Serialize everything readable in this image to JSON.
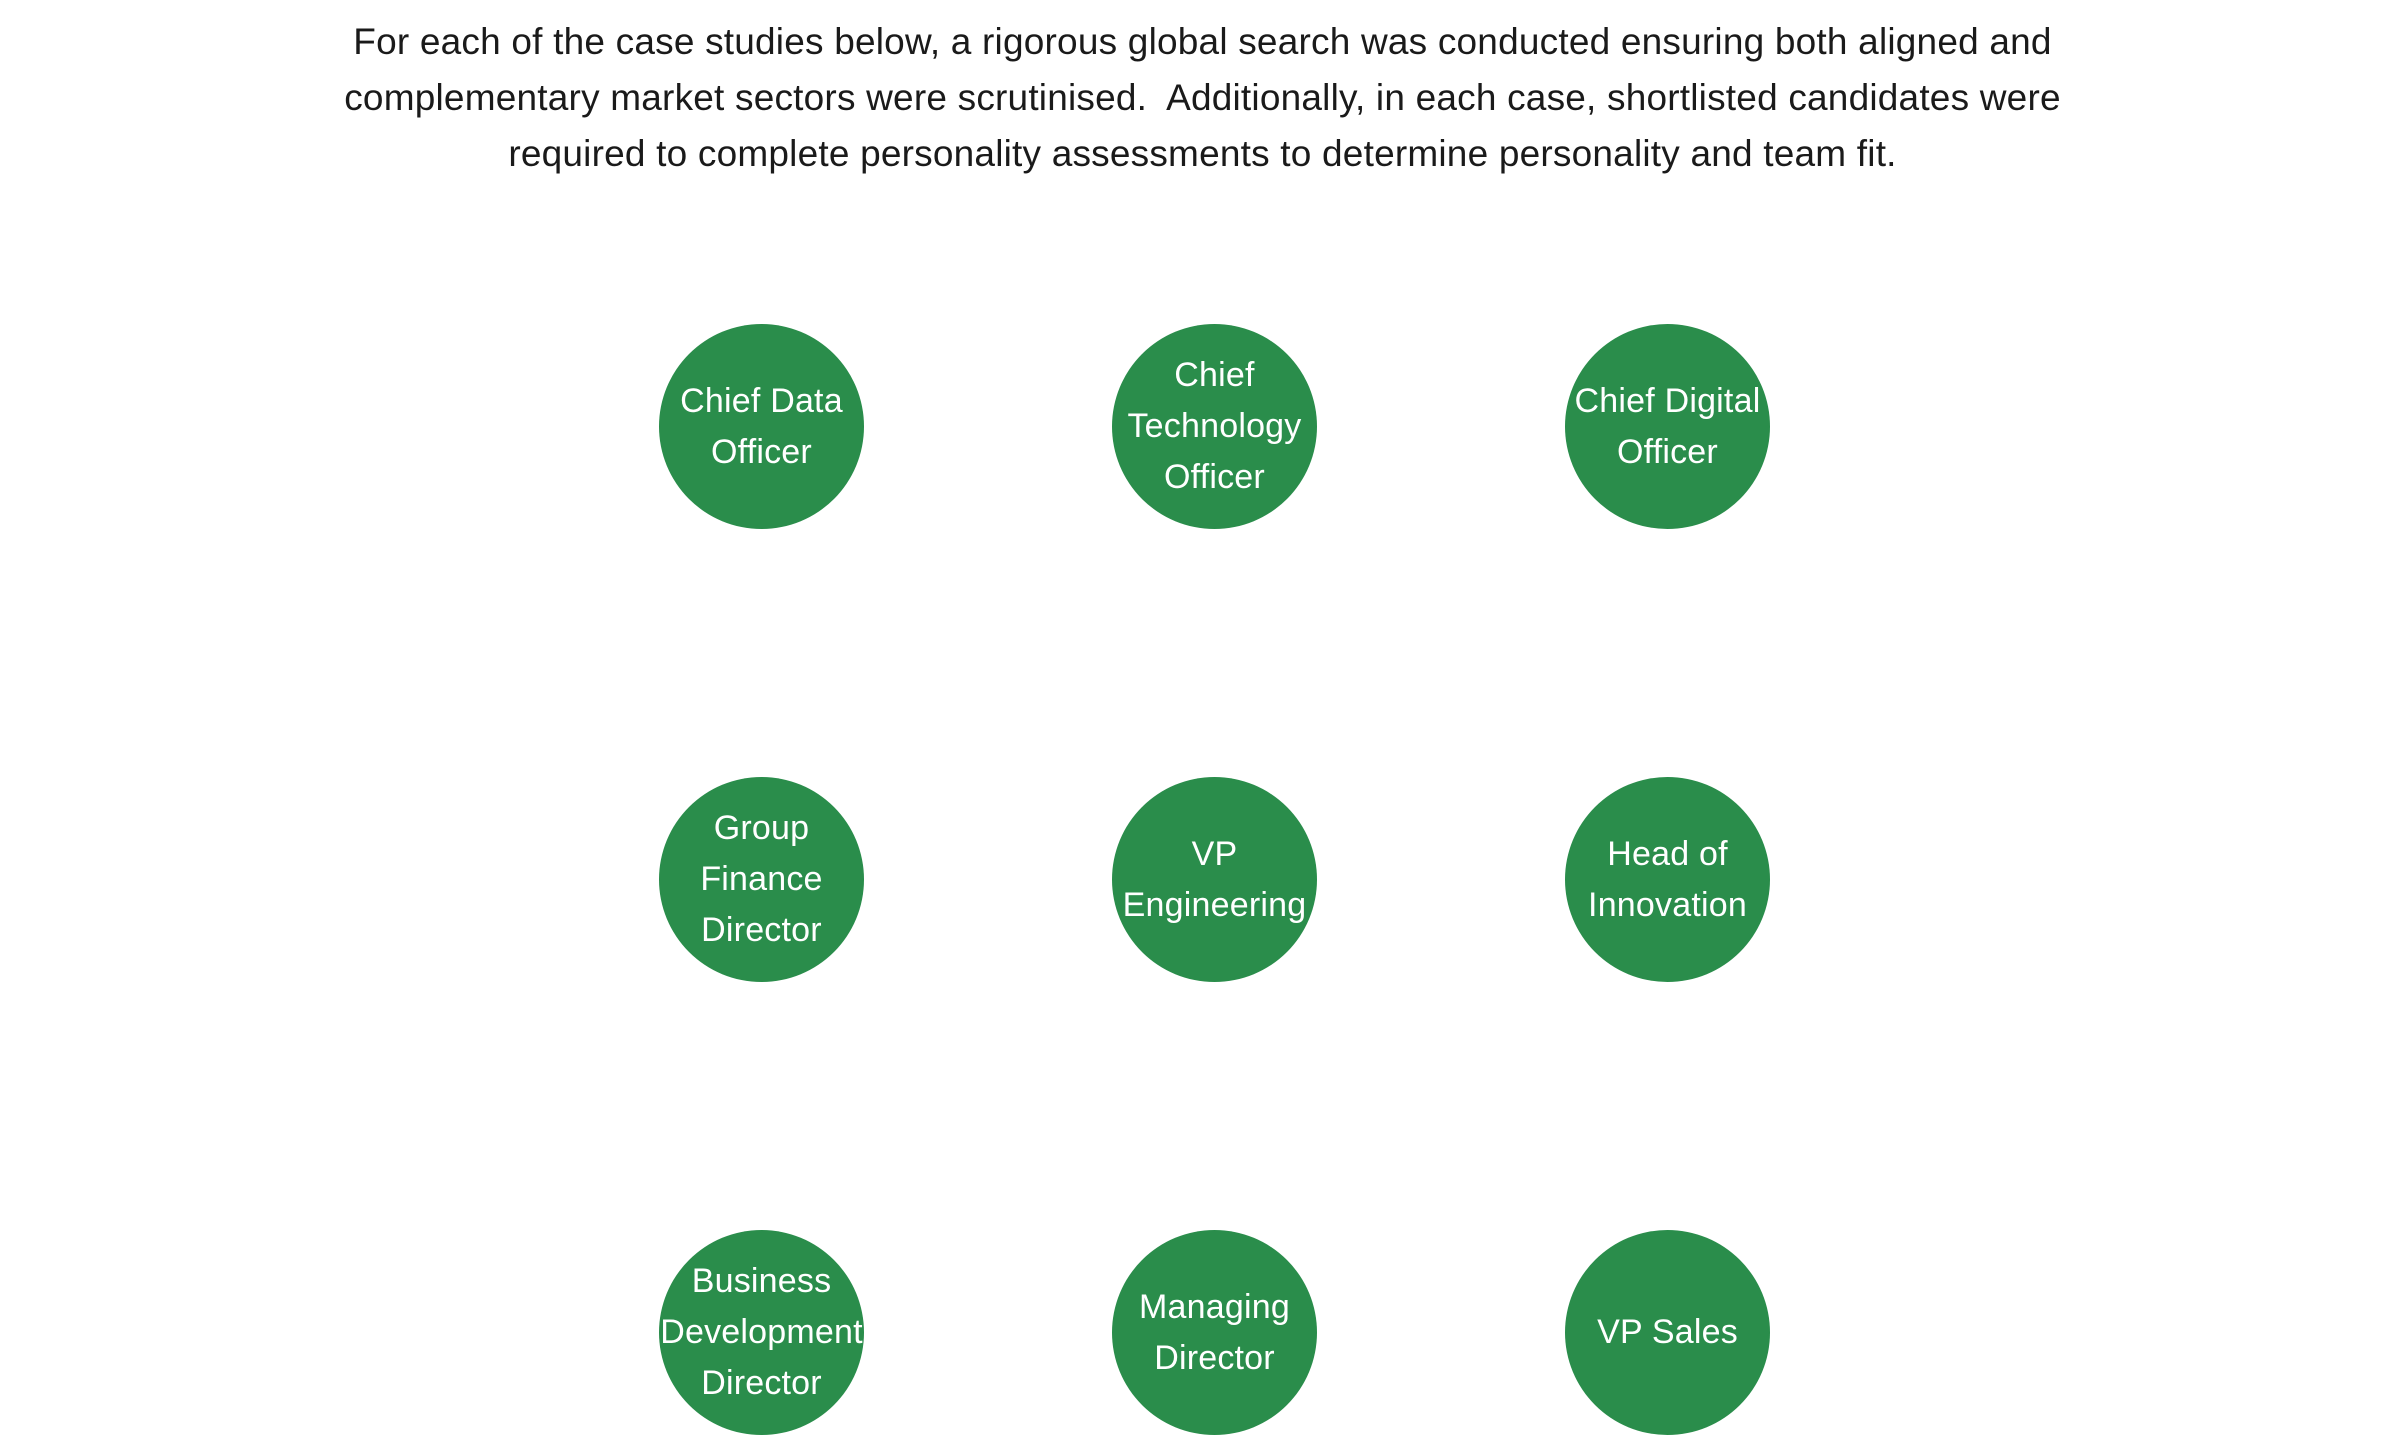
{
  "intro": {
    "lines": [
      "For each of the case studies below, a rigorous global search was conducted ensuring both aligned and",
      "complementary market sectors were scrutinised.  Additionally, in each case, shortlisted candidates were",
      "required to complete personality assessments to determine personality and team fit."
    ]
  },
  "colors": {
    "circle_fill": "#2a8d4b",
    "circle_text": "#ffffff",
    "body_text": "#1a1a1a"
  },
  "case_studies": [
    {
      "lines": [
        "Chief Data",
        "Officer"
      ]
    },
    {
      "lines": [
        "Chief",
        "Technology",
        "Officer"
      ]
    },
    {
      "lines": [
        "Chief Digital",
        "Officer"
      ]
    },
    {
      "lines": [
        "Group",
        "Finance",
        "Director"
      ]
    },
    {
      "lines": [
        "VP",
        "Engineering"
      ]
    },
    {
      "lines": [
        "Head of",
        "Innovation"
      ]
    },
    {
      "lines": [
        "Business",
        "Development",
        "Director"
      ]
    },
    {
      "lines": [
        "Managing",
        "Director"
      ]
    },
    {
      "lines": [
        "VP Sales"
      ]
    }
  ]
}
